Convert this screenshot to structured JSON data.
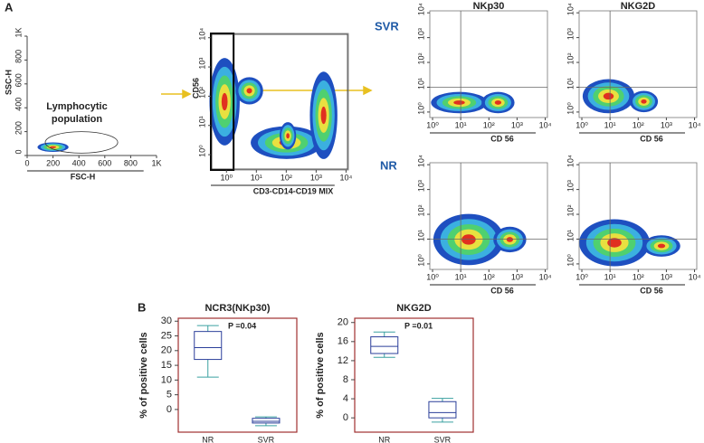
{
  "panel_labels": [
    "A",
    "B"
  ],
  "row_labels": [
    "SVR",
    "NR"
  ],
  "chart_data": [
    {
      "type": "density",
      "xlabel": "FSC-H",
      "ylabel": "SSC-H",
      "annotation": [
        "Lymphocytic",
        "population"
      ],
      "xlim": [
        0,
        1000
      ],
      "ylim": [
        0,
        1000
      ],
      "xticks": [
        0,
        200,
        400,
        600,
        800,
        {
          "value": 1000,
          "label": "1K"
        }
      ],
      "yticks": [
        0,
        200,
        400,
        600,
        800,
        {
          "value": 1000,
          "label": "1K"
        }
      ],
      "log": false,
      "frame": false
    },
    {
      "type": "density",
      "xlabel": "CD3-CD14-CD19 MIX",
      "ylabel": "CD56",
      "log": true,
      "frame": true,
      "xlim": [
        0.3,
        12000
      ],
      "ylim": [
        0.3,
        14000
      ],
      "xticks": [
        {
          "value": 1,
          "label": "10⁰"
        },
        {
          "value": 10,
          "label": "10¹"
        },
        {
          "value": 100,
          "label": "10²"
        },
        {
          "value": 1000,
          "label": "10³"
        },
        {
          "value": 10000,
          "label": "10⁴"
        }
      ],
      "yticks": [
        {
          "value": 1,
          "label": "10⁰"
        },
        {
          "value": 10,
          "label": "10¹"
        },
        {
          "value": 100,
          "label": "10²"
        },
        {
          "value": 1000,
          "label": "10³"
        },
        {
          "value": 10000,
          "label": "10⁴"
        }
      ]
    },
    {
      "type": "density",
      "title": "NKp30",
      "xlabel": "CD 56",
      "log": true,
      "frame": true,
      "xlim": [
        0.8,
        12000
      ],
      "ylim": [
        0.6,
        12000
      ],
      "xticks": [
        {
          "value": 1,
          "label": "10⁰"
        },
        {
          "value": 10,
          "label": "10¹"
        },
        {
          "value": 100,
          "label": "10²"
        },
        {
          "value": 1000,
          "label": "10³"
        },
        {
          "value": 10000,
          "label": "10⁴"
        }
      ],
      "yticks": [
        {
          "value": 1,
          "label": "10⁰"
        },
        {
          "value": 10,
          "label": "10¹"
        },
        {
          "value": 100,
          "label": "10²"
        },
        {
          "value": 1000,
          "label": "10³"
        },
        {
          "value": 10000,
          "label": "10⁴"
        }
      ]
    },
    {
      "type": "density",
      "title": "NKG2D",
      "xlabel": "CD 56",
      "log": true,
      "frame": true,
      "xlim": [
        0.8,
        12000
      ],
      "ylim": [
        0.6,
        12000
      ],
      "xticks": [
        {
          "value": 1,
          "label": "10⁰"
        },
        {
          "value": 10,
          "label": "10¹"
        },
        {
          "value": 100,
          "label": "10²"
        },
        {
          "value": 1000,
          "label": "10³"
        },
        {
          "value": 10000,
          "label": "10⁴"
        }
      ],
      "yticks": [
        {
          "value": 1,
          "label": "10⁰"
        },
        {
          "value": 10,
          "label": "10¹"
        },
        {
          "value": 100,
          "label": "10²"
        },
        {
          "value": 1000,
          "label": "10³"
        },
        {
          "value": 10000,
          "label": "10⁴"
        }
      ]
    },
    {
      "type": "density",
      "xlabel": "CD 56",
      "log": true,
      "frame": true,
      "xlim": [
        0.8,
        12000
      ],
      "ylim": [
        0.6,
        12000
      ],
      "xticks": [
        {
          "value": 1,
          "label": "10⁰"
        },
        {
          "value": 10,
          "label": "10¹"
        },
        {
          "value": 100,
          "label": "10²"
        },
        {
          "value": 1000,
          "label": "10³"
        },
        {
          "value": 10000,
          "label": "10⁴"
        }
      ],
      "yticks": [
        {
          "value": 1,
          "label": "10⁰"
        },
        {
          "value": 10,
          "label": "10¹"
        },
        {
          "value": 100,
          "label": "10²"
        },
        {
          "value": 1000,
          "label": "10³"
        },
        {
          "value": 10000,
          "label": "10⁴"
        }
      ]
    },
    {
      "type": "density",
      "xlabel": "CD 56",
      "log": true,
      "frame": true,
      "xlim": [
        0.8,
        12000
      ],
      "ylim": [
        0.6,
        12000
      ],
      "xticks": [
        {
          "value": 1,
          "label": "10⁰"
        },
        {
          "value": 10,
          "label": "10¹"
        },
        {
          "value": 100,
          "label": "10²"
        },
        {
          "value": 1000,
          "label": "10³"
        },
        {
          "value": 10000,
          "label": "10⁴"
        }
      ],
      "yticks": [
        {
          "value": 1,
          "label": "10⁰"
        },
        {
          "value": 10,
          "label": "10¹"
        },
        {
          "value": 100,
          "label": "10²"
        },
        {
          "value": 1000,
          "label": "10³"
        },
        {
          "value": 10000,
          "label": "10⁴"
        }
      ]
    },
    {
      "type": "box",
      "title": "NCR3(NKp30)",
      "ylabel": "% of positive cells",
      "annotation": "P =0.04",
      "categories": [
        "NR",
        "SVR"
      ],
      "whisker_low": [
        11,
        -5.5
      ],
      "q1": [
        17,
        -4.6
      ],
      "median": [
        21,
        -4
      ],
      "q3": [
        26.5,
        -3
      ],
      "whisker_high": [
        28.5,
        -2.5
      ],
      "ylim": [
        -7.7,
        31
      ],
      "yticks": [
        0,
        5,
        10,
        15,
        20,
        25,
        30
      ],
      "color": "#2b3f9a",
      "whisker_color": "#3aa0a0",
      "frame_color": "#a03030"
    },
    {
      "type": "box",
      "title": "NKG2D",
      "ylabel": "% of positive cells",
      "annotation": "P =0.01",
      "categories": [
        "NR",
        "SVR"
      ],
      "whisker_low": [
        12.7,
        -0.9
      ],
      "q1": [
        13.5,
        0
      ],
      "median": [
        15,
        1.1
      ],
      "q3": [
        17,
        3.4
      ],
      "whisker_high": [
        18,
        4.1
      ],
      "ylim": [
        -3,
        20.9
      ],
      "yticks": [
        0,
        4,
        8,
        12,
        16,
        20
      ],
      "color": "#2b3f9a",
      "whisker_color": "#3aa0a0",
      "frame_color": "#a03030"
    }
  ]
}
